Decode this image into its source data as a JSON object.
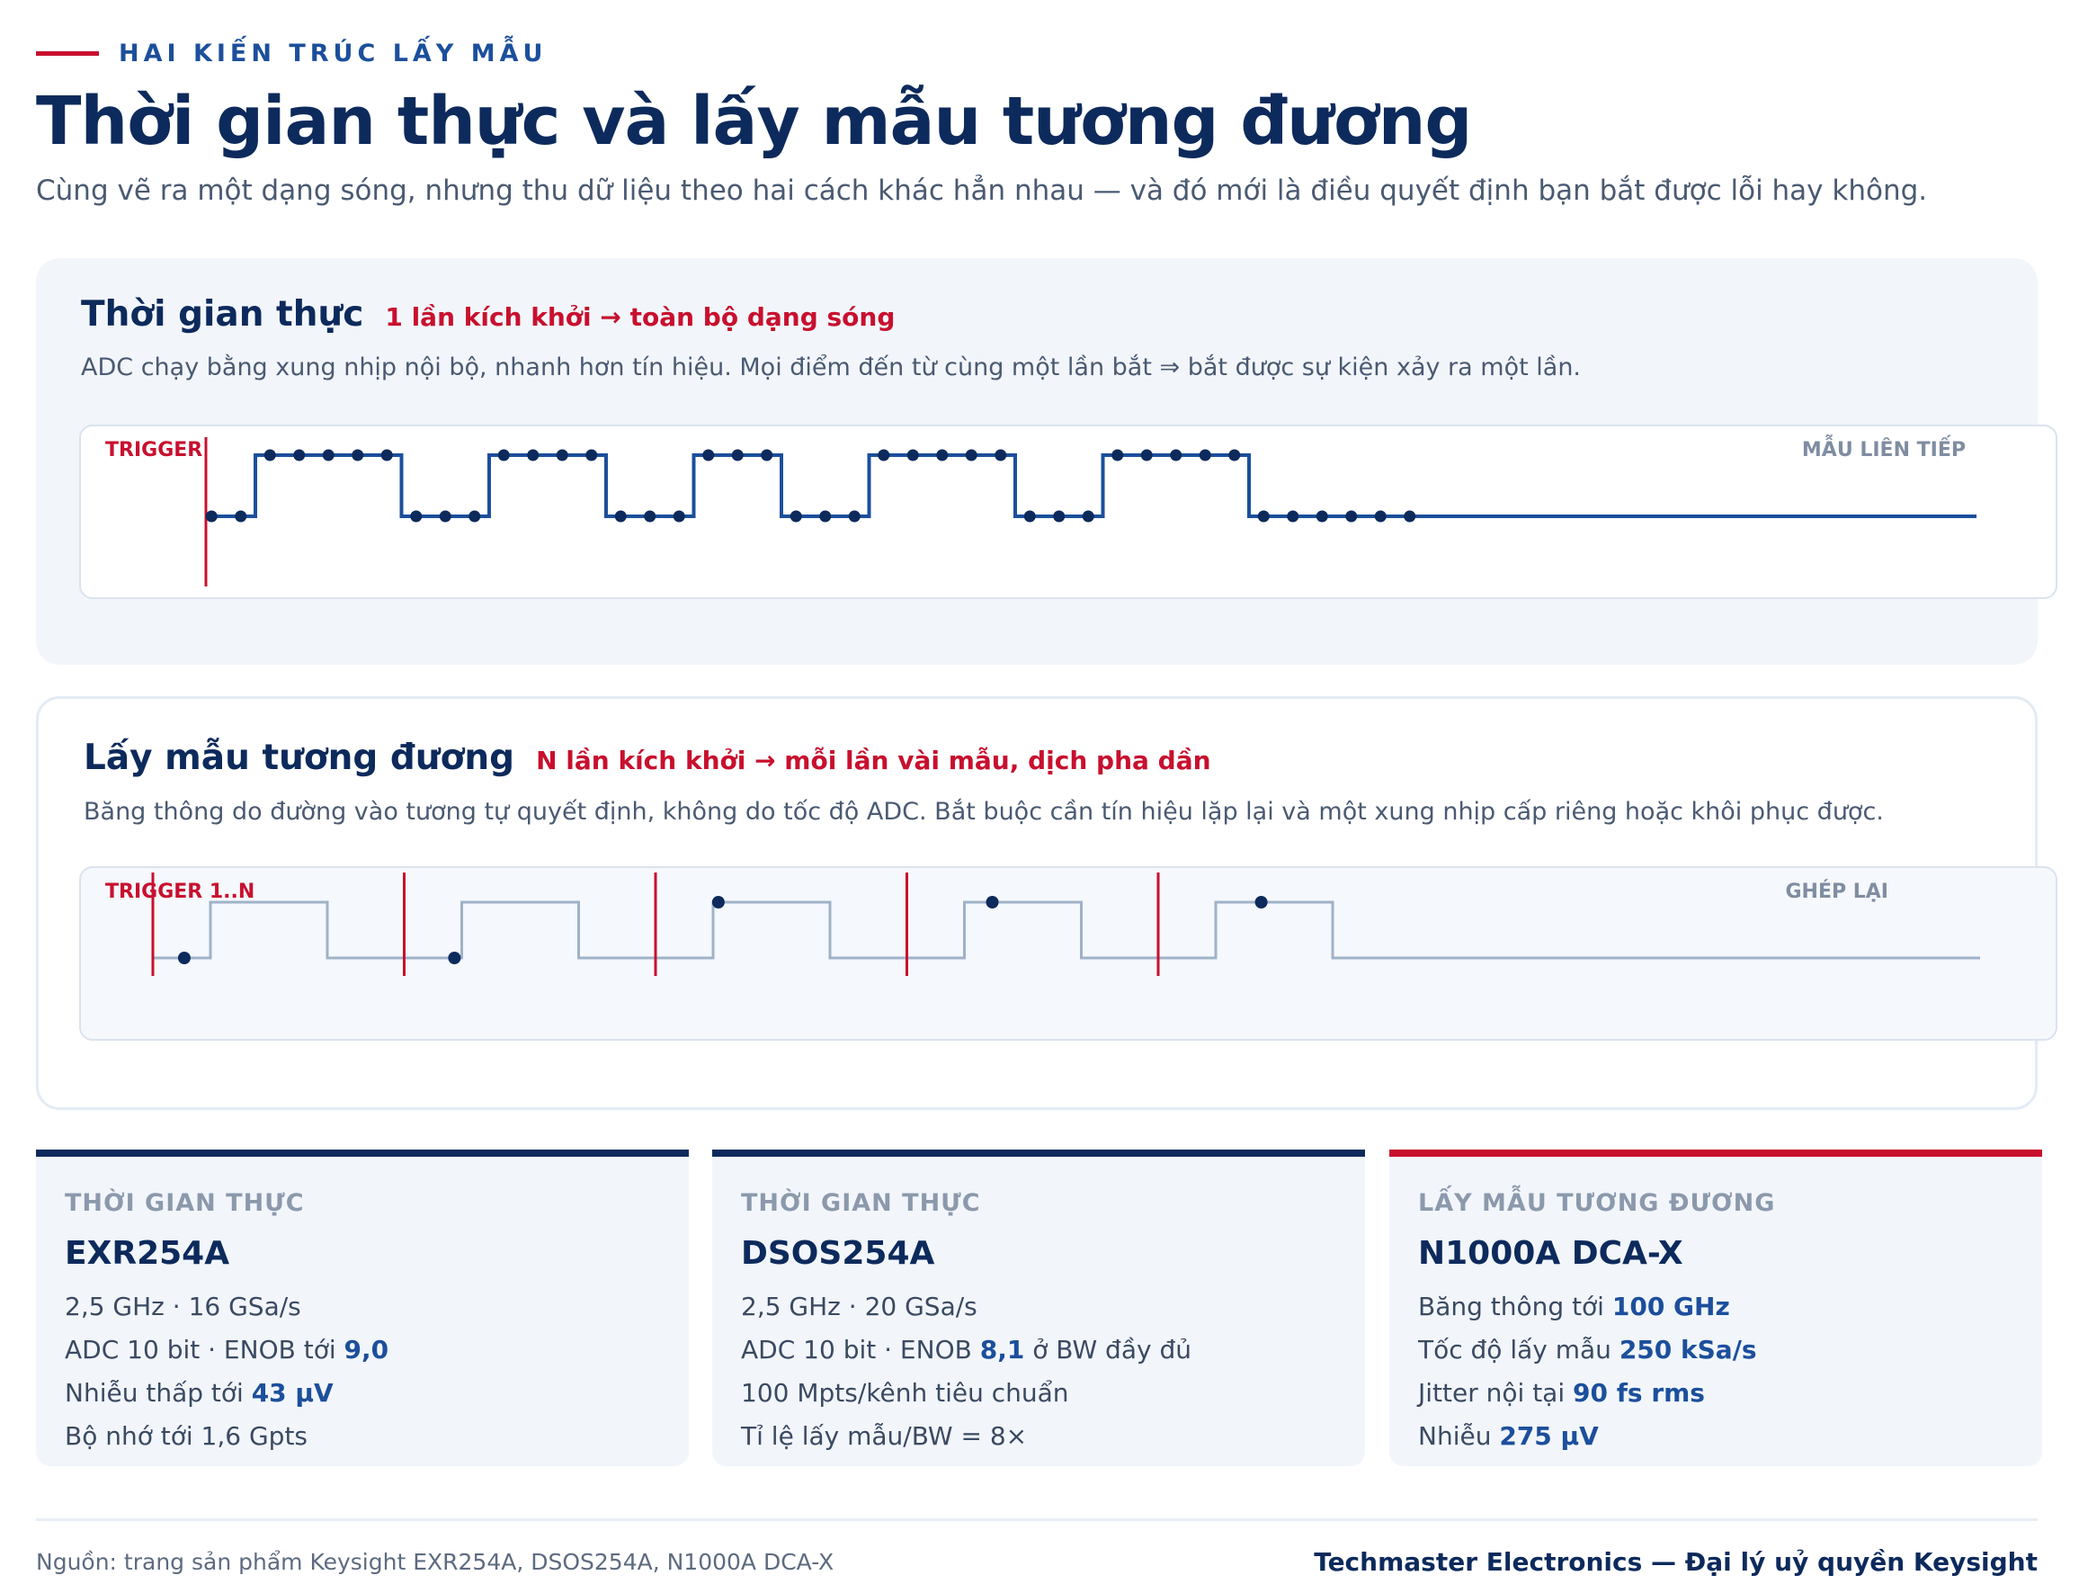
{
  "header": {
    "eyebrow": "HAI KIẾN TRÚC LẤY MẪU",
    "title": "Thời gian thực và lấy mẫu tương đương",
    "subtitle": "Cùng vẽ ra một dạng sóng, nhưng thu dữ liệu theo hai cách khác hẳn nhau — và đó mới là điều quyết định bạn bắt được lỗi hay không."
  },
  "realtime": {
    "title": "Thời gian thực",
    "tag": "1 lần kích khởi → toàn bộ dạng sóng",
    "description": "ADC chạy bằng xung nhịp nội bộ, nhanh hơn tín hiệu. Mọi điểm đến từ cùng một lần bắt ⇒ bắt được sự kiện xảy ra một lần.",
    "trigger_label": "TRIGGER",
    "right_label": "MẪU LIÊN TIẾP"
  },
  "equivalent": {
    "title": "Lấy mẫu tương đương",
    "tag": "N lần kích khởi → mỗi lần vài mẫu, dịch pha dần",
    "description": "Băng thông do đường vào tương tự quyết định, không do tốc độ ADC. Bắt buộc cần tín hiệu lặp lại và một xung nhịp cấp riêng hoặc khôi phục được.",
    "trigger_label": "TRIGGER 1..N",
    "right_label": "GHÉP LẠI"
  },
  "cards": [
    {
      "tag": "THỜI GIAN THỰC",
      "name": "EXR254A",
      "lines": [
        [
          {
            "t": "2,5 GHz · 16 GSa/s"
          }
        ],
        [
          {
            "t": "ADC 10 bit · ENOB tới "
          },
          {
            "t": "9,0",
            "b": true
          }
        ],
        [
          {
            "t": "Nhiễu thấp tới "
          },
          {
            "t": "43 µV",
            "b": true
          }
        ],
        [
          {
            "t": "Bộ nhớ tới 1,6 Gpts"
          }
        ]
      ]
    },
    {
      "tag": "THỜI GIAN THỰC",
      "name": "DSOS254A",
      "lines": [
        [
          {
            "t": "2,5 GHz · 20 GSa/s"
          }
        ],
        [
          {
            "t": "ADC 10 bit · ENOB "
          },
          {
            "t": "8,1",
            "b": true
          },
          {
            "t": " ở BW đầy đủ"
          }
        ],
        [
          {
            "t": "100 Mpts/kênh tiêu chuẩn"
          }
        ],
        [
          {
            "t": "Tỉ lệ lấy mẫu/BW = 8×"
          }
        ]
      ]
    },
    {
      "tag": "LẤY MẪU TƯƠNG ĐƯƠNG",
      "name": "N1000A DCA-X",
      "lines": [
        [
          {
            "t": "Băng thông tới "
          },
          {
            "t": "100 GHz",
            "b": true
          }
        ],
        [
          {
            "t": "Tốc độ lấy mẫu "
          },
          {
            "t": "250 kSa/s",
            "b": true
          }
        ],
        [
          {
            "t": "Jitter nội tại "
          },
          {
            "t": "90 fs rms",
            "b": true
          }
        ],
        [
          {
            "t": "Nhiễu "
          },
          {
            "t": "275 µV",
            "b": true
          }
        ]
      ]
    }
  ],
  "footer": {
    "source": "Nguồn: trang sản phẩm Keysight EXR254A, DSOS254A, N1000A DCA-X",
    "brand": "Techmaster Electronics — Đại lý uỷ quyền Keysight"
  },
  "colors": {
    "navy": "#0d2a5c",
    "accent_red": "#c8102e",
    "signal_blue": "#1c4f9c",
    "ghost_signal": "#9fb2c8"
  },
  "diagram_data": {
    "realtime_bits": [
      0,
      0,
      1,
      1,
      1,
      1,
      1,
      0,
      0,
      0,
      1,
      1,
      1,
      1,
      0,
      0,
      0,
      1,
      1,
      1,
      0,
      0,
      0,
      1,
      1,
      1,
      1,
      1,
      0,
      0,
      0,
      1,
      1,
      1,
      1,
      1,
      0,
      0,
      0,
      0,
      0,
      0
    ],
    "equivalent_pattern": [
      0,
      0,
      1,
      1,
      1,
      1,
      0,
      0
    ],
    "equivalent_segments": 5,
    "equivalent_sample_positions": [
      0.125,
      0.2,
      0.25,
      0.34,
      0.41
    ]
  }
}
